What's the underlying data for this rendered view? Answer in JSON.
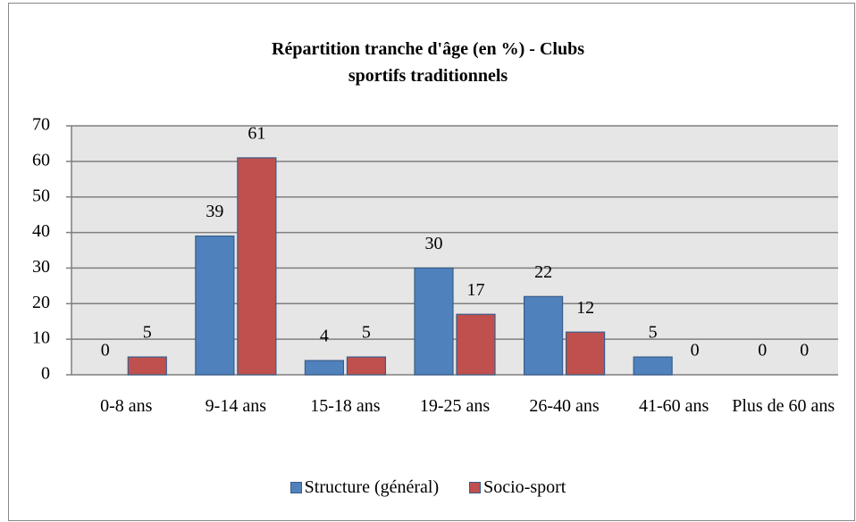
{
  "chart_data": {
    "type": "bar",
    "title": "Répartition tranche d'âge (en %) - Clubs sportifs traditionnels",
    "categories": [
      "0-8 ans",
      "9-14 ans",
      "15-18 ans",
      "19-25 ans",
      "26-40 ans",
      "41-60 ans",
      "Plus de 60 ans"
    ],
    "series": [
      {
        "name": "Structure (général)",
        "color": "#4f81bd",
        "values": [
          0,
          39,
          4,
          30,
          22,
          5,
          0
        ]
      },
      {
        "name": "Socio-sport",
        "color": "#c0504d",
        "values": [
          5,
          61,
          5,
          17,
          12,
          0,
          0
        ]
      }
    ],
    "ylim": [
      0,
      70
    ],
    "yticks": [
      0,
      10,
      20,
      30,
      40,
      50,
      60,
      70
    ],
    "grid": true,
    "legend": "bottom"
  }
}
